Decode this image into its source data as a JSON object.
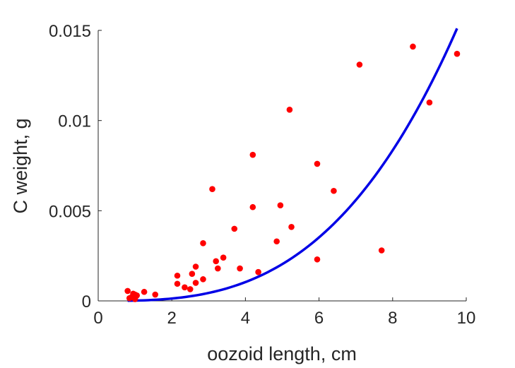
{
  "chart_data": {
    "type": "scatter",
    "title": "",
    "xlabel": "oozoid length, cm",
    "ylabel": "C weight, g",
    "xlim": [
      0,
      10
    ],
    "ylim": [
      0,
      0.015
    ],
    "xticks": [
      0,
      2,
      4,
      6,
      8,
      10
    ],
    "xtick_labels": [
      "0",
      "2",
      "4",
      "6",
      "8",
      "10"
    ],
    "yticks": [
      0,
      0.005,
      0.01,
      0.015
    ],
    "ytick_labels": [
      "0",
      "0.005",
      "0.01",
      "0.015"
    ],
    "grid": false,
    "legend": "none",
    "colors": {
      "points": "#ff0000",
      "fit": "#0000e6",
      "axis": "#262626"
    },
    "series": [
      {
        "kind": "points",
        "x": [
          0.8,
          0.85,
          0.9,
          0.95,
          1.0,
          1.05,
          1.0,
          1.25,
          1.55,
          2.15,
          2.15,
          2.35,
          2.5,
          2.55,
          2.65,
          2.65,
          2.85,
          2.85,
          3.1,
          3.2,
          3.25,
          3.4,
          3.7,
          3.85,
          4.2,
          4.2,
          4.35,
          4.85,
          4.95,
          5.2,
          5.25,
          5.95,
          5.95,
          6.4,
          7.1,
          7.7,
          8.55,
          9.0,
          9.75
        ],
        "y": [
          0.00055,
          0.00015,
          0.0002,
          0.0004,
          0.00035,
          0.0003,
          0.0001,
          0.0005,
          0.00035,
          0.0014,
          0.00095,
          0.00075,
          0.00065,
          0.0015,
          0.0019,
          0.001,
          0.0012,
          0.0032,
          0.0062,
          0.0022,
          0.0018,
          0.0024,
          0.004,
          0.0018,
          0.0081,
          0.0052,
          0.0016,
          0.0033,
          0.0053,
          0.0106,
          0.0041,
          0.0076,
          0.0023,
          0.0061,
          0.0131,
          0.0028,
          0.0141,
          0.011,
          0.0137
        ]
      },
      {
        "kind": "fit-curve",
        "equation": "y = 0.0000163 * x^3",
        "coefficient": 1.63e-05,
        "exponent": 3,
        "x_range": [
          0.8,
          9.75
        ]
      }
    ]
  }
}
